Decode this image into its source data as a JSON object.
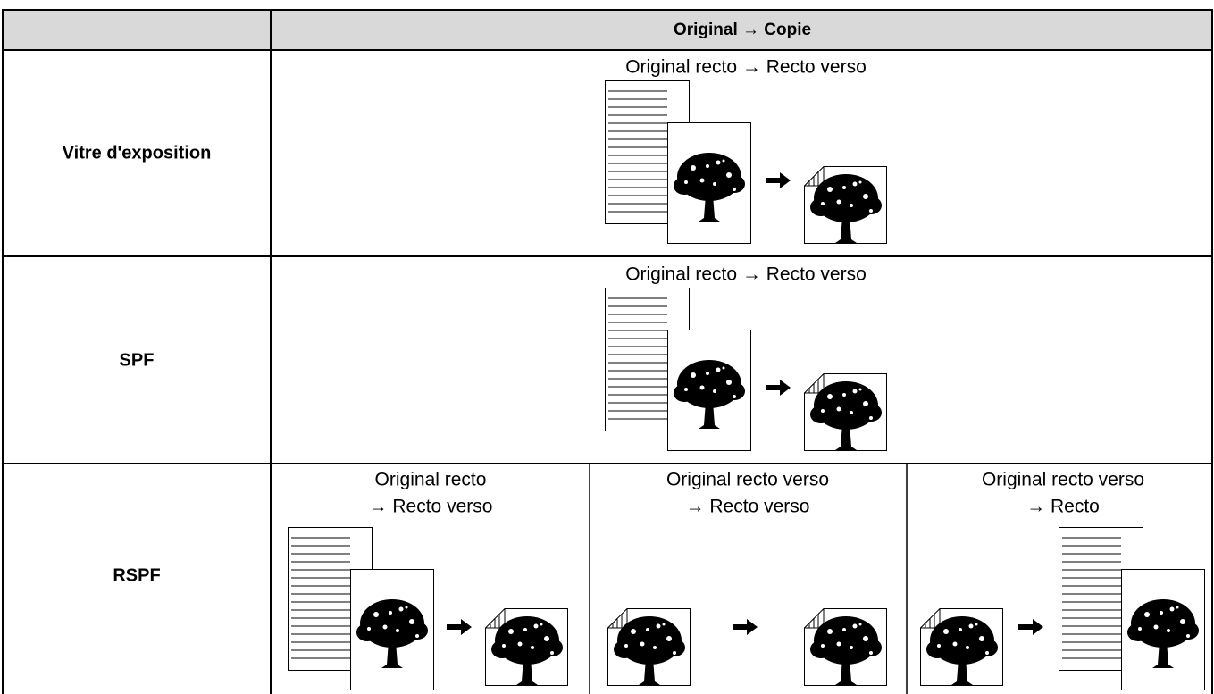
{
  "header": {
    "title": "Original → Copie"
  },
  "rows": [
    {
      "label": "Vitre d'exposition",
      "captions": [
        [
          "Original recto → Recto verso"
        ]
      ]
    },
    {
      "label": "SPF",
      "captions": [
        [
          "Original recto → Recto verso"
        ]
      ]
    },
    {
      "label": "RSPF",
      "captions": [
        [
          "Original recto",
          "→ Recto verso"
        ],
        [
          "Original recto verso",
          "→ Recto verso"
        ],
        [
          "Original recto verso",
          "→ Recto"
        ]
      ]
    }
  ]
}
